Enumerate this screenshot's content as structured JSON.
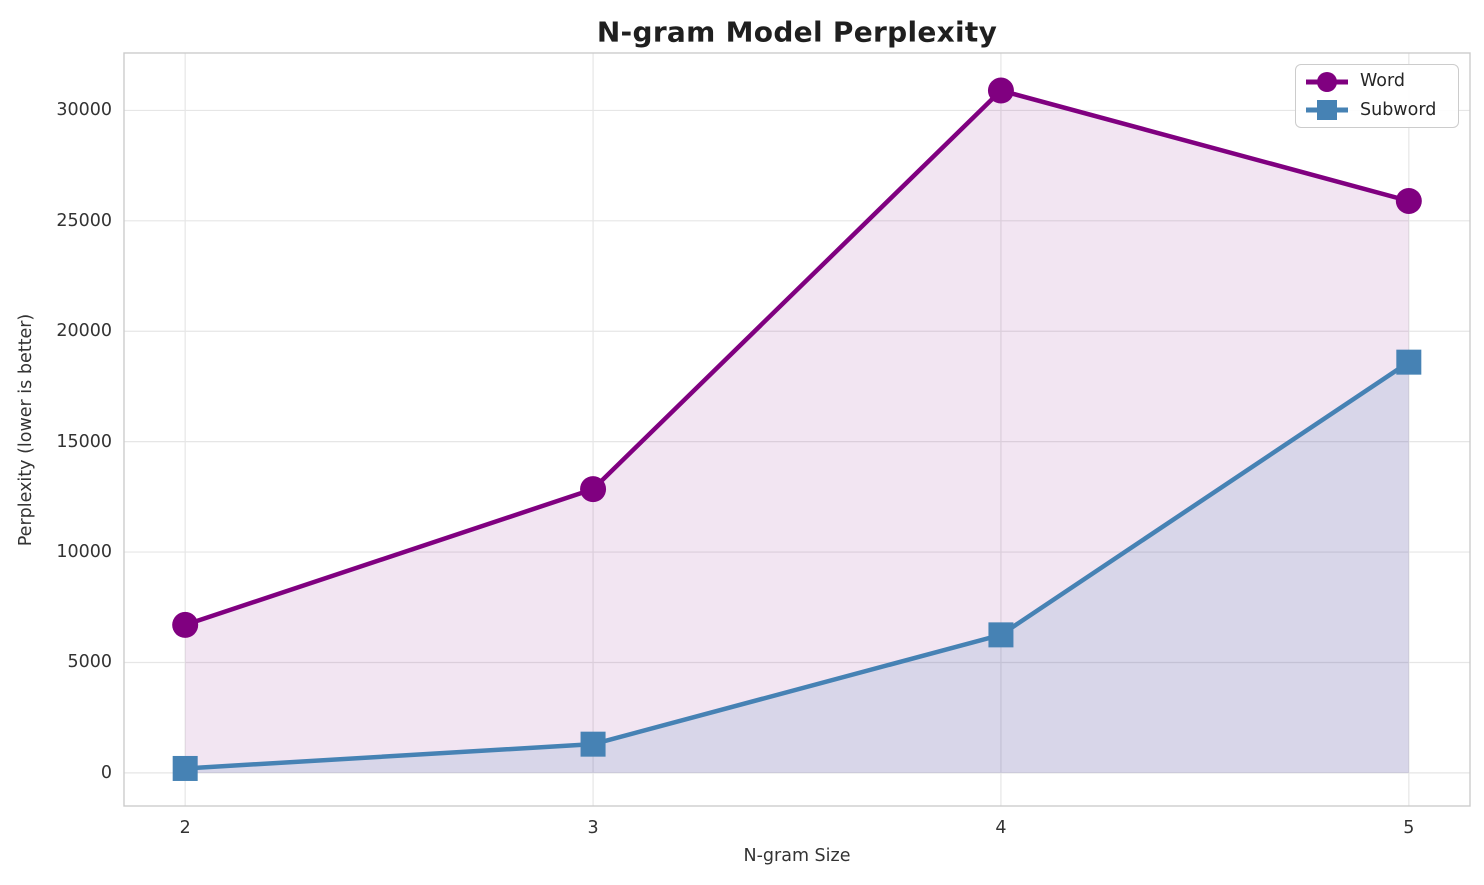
{
  "chart_data": {
    "type": "line",
    "title": "N-gram Model Perplexity",
    "xlabel": "N-gram Size",
    "ylabel": "Perplexity (lower is better)",
    "x": [
      2,
      3,
      4,
      5
    ],
    "series": [
      {
        "name": "Word",
        "marker": "circle",
        "color": "#800080",
        "fill_opacity": 0.1,
        "values": [
          6700,
          12850,
          30900,
          25900
        ]
      },
      {
        "name": "Subword",
        "marker": "square",
        "color": "#4682B4",
        "fill_opacity": 0.15,
        "values": [
          200,
          1300,
          6250,
          18600
        ]
      }
    ],
    "xticks": [
      "2",
      "3",
      "4",
      "5"
    ],
    "xtick_values": [
      2,
      3,
      4,
      5
    ],
    "yticks": [
      "0",
      "5000",
      "10000",
      "15000",
      "20000",
      "25000",
      "30000"
    ],
    "ytick_values": [
      0,
      5000,
      10000,
      15000,
      20000,
      25000,
      30000
    ],
    "xlim": [
      1.85,
      5.15
    ],
    "ylim": [
      -1500,
      32600
    ],
    "grid": true,
    "area_fill_to_zero": true,
    "legend_position": "upper right",
    "colors": {
      "grid": "#e6e6e6",
      "spine": "#cccccc",
      "title_text": "#1f1f1f",
      "tick_text": "#333333",
      "legend_text": "#262626",
      "background": "#ffffff"
    }
  }
}
